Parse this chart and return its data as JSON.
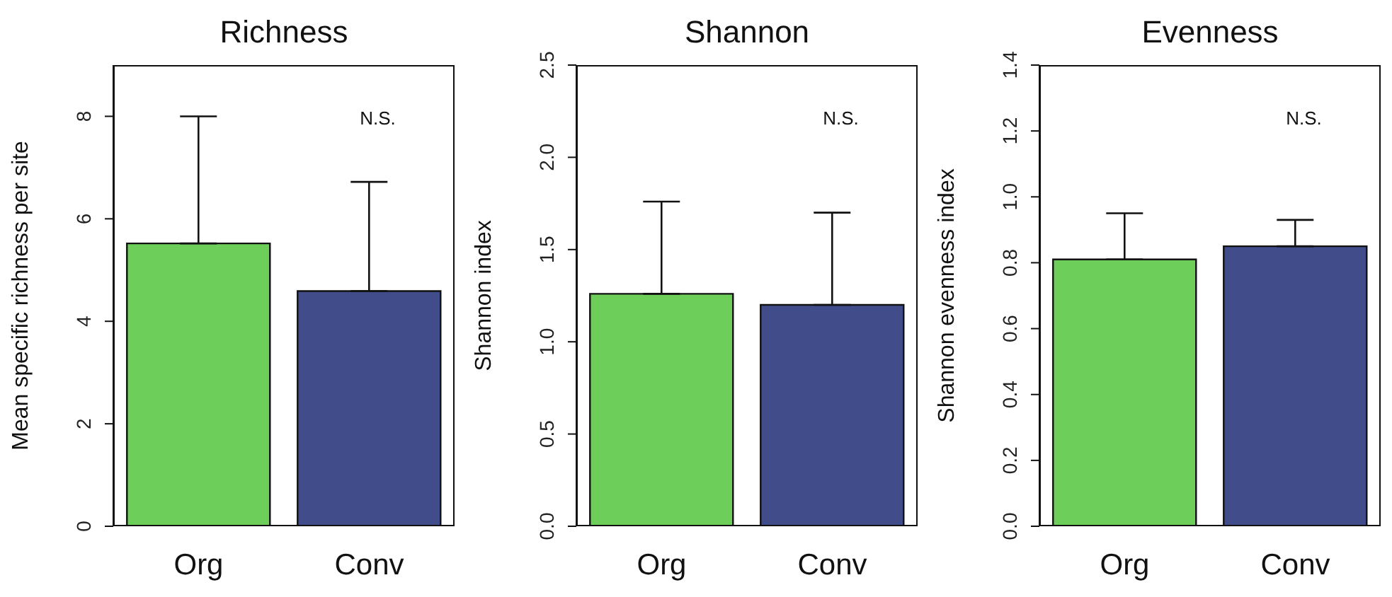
{
  "chart_data": [
    {
      "type": "bar",
      "title": "Richness",
      "ylabel": "Mean specific richness per site",
      "categories": [
        "Org",
        "Conv"
      ],
      "values": [
        5.52,
        4.59
      ],
      "colors": [
        "#6dcf5a",
        "#404d8a"
      ],
      "errors": [
        [
          5.52,
          8.0
        ],
        [
          4.59,
          6.72
        ]
      ],
      "ylim": [
        0,
        9
      ],
      "yticks": [
        0,
        2,
        4,
        6,
        8
      ],
      "annotations": [
        "N.S."
      ]
    },
    {
      "type": "bar",
      "title": "Shannon",
      "ylabel": "Shannon index",
      "categories": [
        "Org",
        "Conv"
      ],
      "values": [
        1.26,
        1.2
      ],
      "colors": [
        "#6dcf5a",
        "#404d8a"
      ],
      "errors": [
        [
          1.26,
          1.76
        ],
        [
          1.2,
          1.7
        ]
      ],
      "ylim": [
        0,
        2.5
      ],
      "yticks": [
        {
          "value": 0,
          "label": "0.0"
        },
        {
          "value": 0.5,
          "label": "0.5"
        },
        {
          "value": 1,
          "label": "1.0"
        },
        {
          "value": 1.5,
          "label": "1.5"
        },
        {
          "value": 2,
          "label": "2.0"
        },
        {
          "value": 2.5,
          "label": "2.5"
        }
      ],
      "annotations": [
        "N.S."
      ]
    },
    {
      "type": "bar",
      "title": "Evenness",
      "ylabel": "Shannon evenness index",
      "categories": [
        "Org",
        "Conv"
      ],
      "values": [
        0.81,
        0.85
      ],
      "colors": [
        "#6dcf5a",
        "#404d8a"
      ],
      "errors": [
        [
          0.81,
          0.95
        ],
        [
          0.85,
          0.93
        ]
      ],
      "ylim": [
        0,
        1.4
      ],
      "yticks": [
        {
          "value": 0,
          "label": "0.0"
        },
        {
          "value": 0.2,
          "label": "0.2"
        },
        {
          "value": 0.4,
          "label": "0.4"
        },
        {
          "value": 0.6,
          "label": "0.6"
        },
        {
          "value": 0.8,
          "label": "0.8"
        },
        {
          "value": 1,
          "label": "1.0"
        },
        {
          "value": 1.2,
          "label": "1.2"
        },
        {
          "value": 1.4,
          "label": "1.4"
        }
      ],
      "annotations": [
        "N.S."
      ]
    }
  ]
}
